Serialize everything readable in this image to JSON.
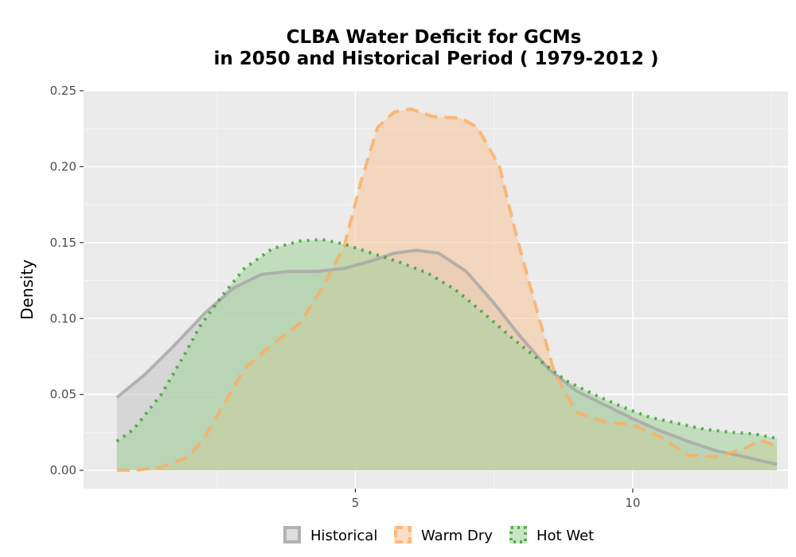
{
  "chart_data": {
    "type": "area",
    "title_line1": "CLBA  Water Deficit for GCMs",
    "title_line2": "in 2050 and Historical Period ( 1979-2012 )",
    "xlabel": "",
    "ylabel": "Density",
    "xlim": [
      0.1,
      12.8
    ],
    "ylim": [
      -0.012,
      0.25
    ],
    "x_ticks": [
      5,
      10
    ],
    "x_tick_labels": [
      "5",
      "10"
    ],
    "y_ticks": [
      0,
      0.05,
      0.1,
      0.15,
      0.2,
      0.25
    ],
    "y_tick_labels": [
      "0.00",
      "0.05",
      "0.10",
      "0.15",
      "0.20",
      "0.25"
    ],
    "grid": true,
    "legend_position": "bottom",
    "series": [
      {
        "name": "Historical",
        "line_color": "#a6a6a6",
        "fill_color": "#c8c8c8",
        "line_style": "solid",
        "points": [
          [
            0.7,
            0.048
          ],
          [
            1.2,
            0.063
          ],
          [
            1.7,
            0.081
          ],
          [
            2.3,
            0.104
          ],
          [
            2.8,
            0.12
          ],
          [
            3.3,
            0.129
          ],
          [
            3.8,
            0.131
          ],
          [
            4.3,
            0.131
          ],
          [
            4.8,
            0.133
          ],
          [
            5.3,
            0.138
          ],
          [
            5.7,
            0.143
          ],
          [
            6.1,
            0.145
          ],
          [
            6.5,
            0.143
          ],
          [
            7.0,
            0.131
          ],
          [
            7.5,
            0.11
          ],
          [
            8.0,
            0.087
          ],
          [
            8.5,
            0.066
          ],
          [
            9.0,
            0.052
          ],
          [
            9.5,
            0.043
          ],
          [
            10.0,
            0.034
          ],
          [
            10.5,
            0.026
          ],
          [
            11.0,
            0.019
          ],
          [
            11.5,
            0.013
          ],
          [
            12.0,
            0.009
          ],
          [
            12.6,
            0.004
          ]
        ]
      },
      {
        "name": "Warm Dry",
        "line_color": "#fdae61",
        "fill_color": "#f6c89e",
        "line_style": "dashed",
        "points": [
          [
            0.7,
            0.0
          ],
          [
            1.0,
            0.0
          ],
          [
            1.5,
            0.002
          ],
          [
            2.0,
            0.009
          ],
          [
            2.3,
            0.023
          ],
          [
            2.7,
            0.048
          ],
          [
            3.0,
            0.067
          ],
          [
            3.5,
            0.083
          ],
          [
            4.0,
            0.097
          ],
          [
            4.4,
            0.12
          ],
          [
            4.8,
            0.148
          ],
          [
            5.1,
            0.19
          ],
          [
            5.4,
            0.226
          ],
          [
            5.7,
            0.236
          ],
          [
            6.0,
            0.238
          ],
          [
            6.4,
            0.233
          ],
          [
            6.9,
            0.232
          ],
          [
            7.2,
            0.226
          ],
          [
            7.6,
            0.2
          ],
          [
            7.9,
            0.155
          ],
          [
            8.2,
            0.115
          ],
          [
            8.6,
            0.063
          ],
          [
            9.0,
            0.038
          ],
          [
            9.5,
            0.032
          ],
          [
            10.0,
            0.03
          ],
          [
            10.5,
            0.022
          ],
          [
            11.0,
            0.01
          ],
          [
            11.5,
            0.009
          ],
          [
            12.0,
            0.014
          ],
          [
            12.3,
            0.02
          ],
          [
            12.6,
            0.016
          ]
        ]
      },
      {
        "name": "Hot Wet",
        "line_color": "#33a02c",
        "fill_color": "#a6d4a0",
        "line_style": "dotted",
        "points": [
          [
            0.7,
            0.019
          ],
          [
            1.0,
            0.027
          ],
          [
            1.5,
            0.05
          ],
          [
            1.9,
            0.075
          ],
          [
            2.2,
            0.095
          ],
          [
            2.6,
            0.115
          ],
          [
            3.0,
            0.133
          ],
          [
            3.5,
            0.146
          ],
          [
            4.0,
            0.151
          ],
          [
            4.4,
            0.152
          ],
          [
            4.8,
            0.149
          ],
          [
            5.3,
            0.143
          ],
          [
            5.8,
            0.137
          ],
          [
            6.3,
            0.13
          ],
          [
            6.8,
            0.119
          ],
          [
            7.3,
            0.104
          ],
          [
            7.8,
            0.088
          ],
          [
            8.3,
            0.073
          ],
          [
            8.8,
            0.059
          ],
          [
            9.3,
            0.05
          ],
          [
            9.8,
            0.042
          ],
          [
            10.3,
            0.035
          ],
          [
            10.8,
            0.031
          ],
          [
            11.3,
            0.027
          ],
          [
            11.8,
            0.025
          ],
          [
            12.2,
            0.024
          ],
          [
            12.6,
            0.021
          ]
        ]
      }
    ],
    "legend": [
      {
        "label": "Historical",
        "series": 0
      },
      {
        "label": "Warm Dry",
        "series": 1
      },
      {
        "label": "Hot Wet",
        "series": 2
      }
    ]
  },
  "colors": {
    "panel_background": "#ebebeb",
    "grid_major": "#ffffff",
    "grid_minor": "#f5f5f5"
  }
}
